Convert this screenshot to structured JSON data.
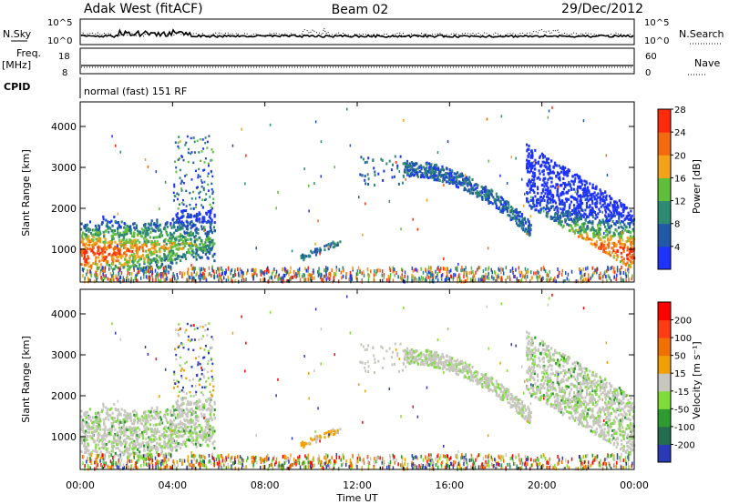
{
  "header": {
    "radar": "Adak West (fitACF)",
    "beam": "Beam 02",
    "date": "29/Dec/2012"
  },
  "left_labels": {
    "nsky": "N.Sky",
    "freq_line1": "Freq.",
    "freq_line2": "[MHz]",
    "cpid": "CPID"
  },
  "right_labels": {
    "nsearch": "N.Search",
    "nave": "Nave"
  },
  "cpid_text": "normal (fast) 151 RF",
  "chart_data": [
    {
      "type": "line",
      "panel": "noise",
      "ylim_labels": [
        "10^0",
        "10^5"
      ],
      "ylim_right_labels": [
        "10^0",
        "10^5"
      ],
      "series": [
        {
          "name": "N.Sky",
          "style": "solid"
        },
        {
          "name": "N.Search",
          "style": "dotted"
        }
      ]
    },
    {
      "type": "line",
      "panel": "frequency",
      "y_ticks": [
        "8",
        "18"
      ],
      "y_right_ticks": [
        "0",
        "60"
      ],
      "series": [
        {
          "name": "Nave",
          "style": "dotted"
        }
      ]
    },
    {
      "type": "heatmap",
      "panel": "power",
      "ylabel": "Slant Range [km]",
      "y_ticks": [
        "1000",
        "2000",
        "3000",
        "4000"
      ],
      "ylim": [
        200,
        4600
      ],
      "colorbar": {
        "label": "Power [dB]",
        "ticks": [
          "4",
          "8",
          "12",
          "16",
          "20",
          "24",
          "28"
        ],
        "colors": [
          "#1f33ff",
          "#2158a8",
          "#2e8a73",
          "#5fbf3a",
          "#f4a21a",
          "#f36a10",
          "#ff2a0a"
        ]
      }
    },
    {
      "type": "heatmap",
      "panel": "velocity",
      "ylabel": "Slant Range [km]",
      "y_ticks": [
        "1000",
        "2000",
        "3000",
        "4000"
      ],
      "ylim": [
        200,
        4600
      ],
      "colorbar": {
        "label": "Velocity [m s⁻¹]",
        "ticks": [
          "200",
          "100",
          "50",
          "15",
          "-15",
          "-50",
          "-100",
          "-200"
        ],
        "colors": [
          "#2a39b5",
          "#246d50",
          "#2f9a2f",
          "#7fdc3a",
          "#c7c7c0",
          "#f0a000",
          "#f07000",
          "#ff3c14",
          "#ff0000"
        ]
      }
    }
  ],
  "xaxis": {
    "label": "Time UT",
    "ticks": [
      "00:00",
      "04:00",
      "08:00",
      "12:00",
      "16:00",
      "20:00",
      "00:00"
    ]
  }
}
